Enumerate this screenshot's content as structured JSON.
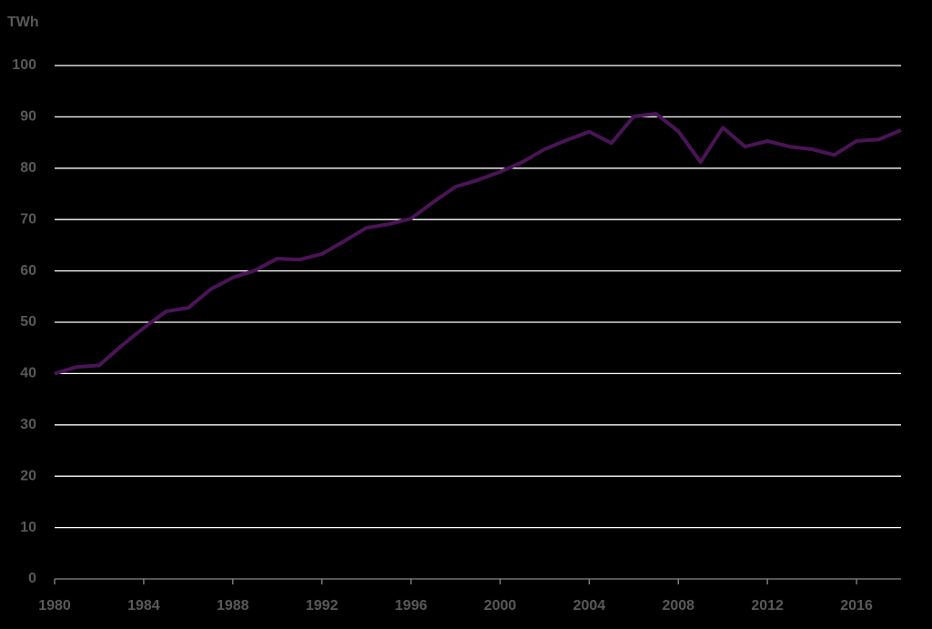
{
  "chart_data": {
    "type": "line",
    "y_axis_label": "TWh",
    "x": [
      1980,
      1981,
      1982,
      1983,
      1984,
      1985,
      1986,
      1987,
      1988,
      1989,
      1990,
      1991,
      1992,
      1993,
      1994,
      1995,
      1996,
      1997,
      1998,
      1999,
      2000,
      2001,
      2002,
      2003,
      2004,
      2005,
      2006,
      2007,
      2008,
      2009,
      2010,
      2011,
      2012,
      2013,
      2014,
      2015,
      2016,
      2017,
      2018
    ],
    "series": [
      {
        "color": "#4a1457",
        "values": [
          40.0,
          41.3,
          41.6,
          45.4,
          48.9,
          52.1,
          52.8,
          56.4,
          58.7,
          60.1,
          62.4,
          62.2,
          63.3,
          65.8,
          68.4,
          69.1,
          70.2,
          73.4,
          76.4,
          77.7,
          79.3,
          81.2,
          83.7,
          85.5,
          87.1,
          84.9,
          90.1,
          90.6,
          87.2,
          81.2,
          87.9,
          84.2,
          85.3,
          84.2,
          83.7,
          82.6,
          85.3,
          85.6,
          87.4
        ]
      }
    ],
    "xlim": [
      1980,
      2018
    ],
    "xticks": [
      1980,
      1984,
      1988,
      1992,
      1996,
      2000,
      2004,
      2008,
      2012,
      2016
    ],
    "ylim": [
      0,
      100
    ],
    "yticks": [
      0,
      10,
      20,
      30,
      40,
      50,
      60,
      70,
      80,
      90,
      100
    ],
    "grid": true
  }
}
